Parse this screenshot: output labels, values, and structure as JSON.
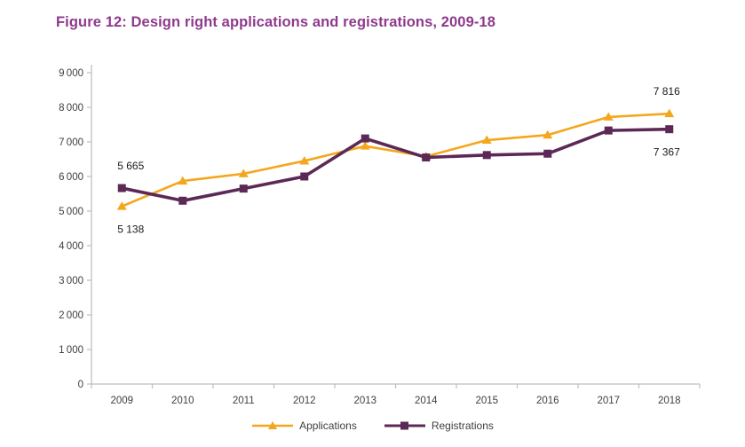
{
  "title": "Figure 12: Design right applications and registrations, 2009-18",
  "colors": {
    "title": "#8E3A8C",
    "applications": "#F4A71D",
    "registrations": "#5C2956",
    "axis": "#BFBFBF",
    "tick_label": "#404040",
    "data_label": "#1A1A1A"
  },
  "chart_data": {
    "type": "line",
    "title": "Figure 12: Design right applications and registrations, 2009-18",
    "categories": [
      "2009",
      "2010",
      "2011",
      "2012",
      "2013",
      "2014",
      "2015",
      "2016",
      "2017",
      "2018"
    ],
    "series": [
      {
        "name": "Applications",
        "marker": "triangle",
        "color_key": "applications",
        "values": [
          5138,
          5870,
          6080,
          6450,
          6880,
          6580,
          7050,
          7200,
          7720,
          7816
        ]
      },
      {
        "name": "Registrations",
        "marker": "square",
        "color_key": "registrations",
        "values": [
          5665,
          5300,
          5650,
          6000,
          7100,
          6550,
          6620,
          6660,
          7330,
          7367
        ]
      }
    ],
    "ylim": [
      0,
      9000
    ],
    "ytick_step": 1000,
    "grid": false,
    "legend_position": "bottom",
    "annotations": [
      {
        "series": "Registrations",
        "index": 0,
        "text": "5 665",
        "position": "above"
      },
      {
        "series": "Applications",
        "index": 0,
        "text": "5 138",
        "position": "below"
      },
      {
        "series": "Applications",
        "index": 9,
        "text": "7 816",
        "position": "above"
      },
      {
        "series": "Registrations",
        "index": 9,
        "text": "7 367",
        "position": "below"
      }
    ]
  }
}
